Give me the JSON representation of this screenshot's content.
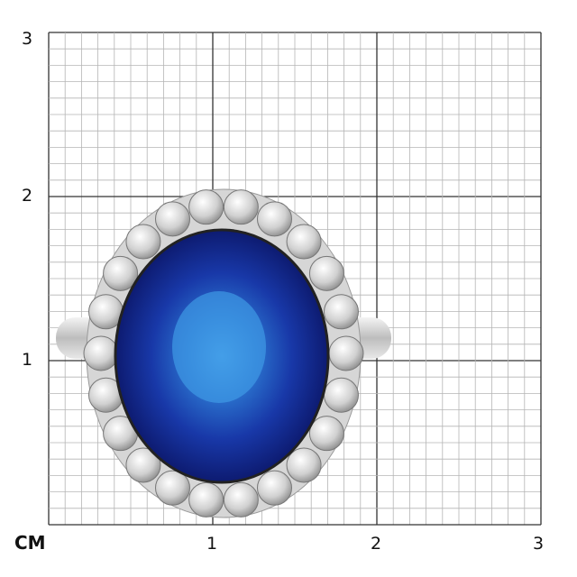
{
  "scale": {
    "unit_label": "CM",
    "y_labels": [
      "3",
      "2",
      "1"
    ],
    "x_labels": [
      "1",
      "2",
      "3"
    ],
    "range_cm": [
      0,
      3
    ],
    "minor_divisions_per_cm": 10
  },
  "colors": {
    "grid_minor": "#b5b5b5",
    "grid_major": "#333333",
    "sapphire": "#1a3fa8",
    "metal": "#d9d9d9"
  },
  "subject": {
    "icon": "sapphire-diamond-halo-ring"
  }
}
